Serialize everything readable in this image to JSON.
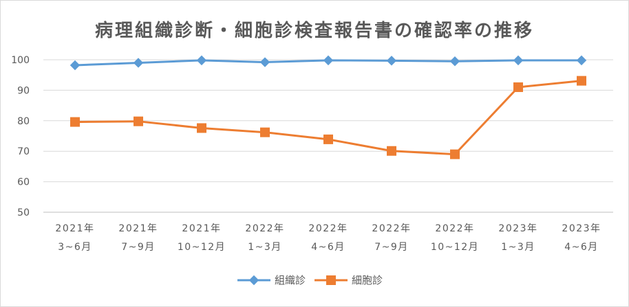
{
  "chart_data": {
    "type": "line",
    "title": "病理組織診断・細胞診検査報告書の確認率の推移",
    "categories": [
      [
        "2021年",
        "3~6月"
      ],
      [
        "2021年",
        "7~9月"
      ],
      [
        "2021年",
        "10~12月"
      ],
      [
        "2022年",
        "1~3月"
      ],
      [
        "2022年",
        "4~6月"
      ],
      [
        "2022年",
        "7~9月"
      ],
      [
        "2022年",
        "10~12月"
      ],
      [
        "2023年",
        "1~3月"
      ],
      [
        "2023年",
        "4~6月"
      ]
    ],
    "series": [
      {
        "name": "組織診",
        "color": "#5b9bd5",
        "marker": "diamond",
        "values": [
          98.2,
          99.0,
          99.8,
          99.2,
          99.8,
          99.7,
          99.5,
          99.8,
          99.8
        ]
      },
      {
        "name": "細胞診",
        "color": "#ed7d31",
        "marker": "square",
        "values": [
          79.6,
          79.8,
          77.6,
          76.2,
          73.9,
          70.1,
          69.0,
          91.0,
          93.1
        ]
      }
    ],
    "yticks": [
      50,
      60,
      70,
      80,
      90,
      100
    ],
    "ylim": [
      50,
      100
    ],
    "grid": true,
    "legend_position": "bottom"
  }
}
